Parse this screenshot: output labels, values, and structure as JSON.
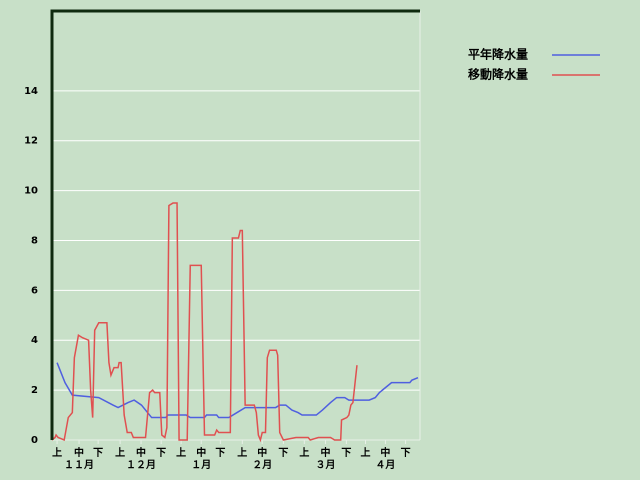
{
  "chart_data": {
    "type": "line",
    "ylim": [
      0,
      17.2
    ],
    "yticks": [
      0,
      2,
      4,
      6,
      8,
      10,
      12,
      14
    ],
    "xlim": [
      0,
      181
    ],
    "xticks": [
      {
        "value": 2.5,
        "label": "上"
      },
      {
        "value": 13.3,
        "label": "中"
      },
      {
        "value": 22.7,
        "label": "下"
      },
      {
        "value": 33.5,
        "label": "上"
      },
      {
        "value": 43.8,
        "label": "中"
      },
      {
        "value": 53.7,
        "label": "下"
      },
      {
        "value": 63.5,
        "label": "上"
      },
      {
        "value": 73.4,
        "label": "中"
      },
      {
        "value": 82.8,
        "label": "下"
      },
      {
        "value": 93.6,
        "label": "上"
      },
      {
        "value": 103.4,
        "label": "中"
      },
      {
        "value": 113.8,
        "label": "下"
      },
      {
        "value": 124.1,
        "label": "上"
      },
      {
        "value": 134.5,
        "label": "中"
      },
      {
        "value": 144.8,
        "label": "下"
      },
      {
        "value": 154.2,
        "label": "上"
      },
      {
        "value": 164,
        "label": "中"
      },
      {
        "value": 173.9,
        "label": "下"
      }
    ],
    "months": [
      {
        "value": 13.3,
        "label": "１１月"
      },
      {
        "value": 43.8,
        "label": "１２月"
      },
      {
        "value": 73.4,
        "label": "１月"
      },
      {
        "value": 103.4,
        "label": "２月"
      },
      {
        "value": 134.5,
        "label": "３月"
      },
      {
        "value": 164,
        "label": "４月"
      }
    ],
    "grid": true,
    "series": [
      {
        "name": "平年降水量",
        "color": "#4f5fe0",
        "x": [
          2.5,
          6.4,
          10,
          23,
          30,
          32.5,
          37.4,
          40.4,
          44,
          47,
          49,
          56,
          57,
          66,
          68,
          75,
          76,
          81,
          82,
          87,
          91,
          95,
          110,
          112,
          115,
          118,
          121,
          123,
          130,
          133,
          137,
          140,
          144,
          146,
          156,
          159,
          161,
          164,
          167,
          176,
          177,
          180
        ],
        "values": [
          3.1,
          2.3,
          1.8,
          1.7,
          1.4,
          1.3,
          1.5,
          1.6,
          1.4,
          1.1,
          0.9,
          0.9,
          1.0,
          1.0,
          0.9,
          0.9,
          1.0,
          1.0,
          0.9,
          0.9,
          1.1,
          1.3,
          1.3,
          1.4,
          1.4,
          1.2,
          1.1,
          1.0,
          1.0,
          1.2,
          1.5,
          1.7,
          1.7,
          1.6,
          1.6,
          1.7,
          1.9,
          2.1,
          2.3,
          2.3,
          2.4,
          2.5
        ]
      },
      {
        "name": "移動降水量",
        "color": "#e05050",
        "x": [
          0,
          1.5,
          2,
          3,
          6,
          8,
          10,
          11,
          13,
          15,
          18,
          19,
          20,
          21,
          23,
          27,
          28,
          29,
          30.5,
          32.5,
          33,
          34,
          35.5,
          37,
          39,
          40,
          46,
          48,
          49.5,
          50.5,
          53,
          54,
          55.5,
          56.5,
          57.5,
          59.5,
          61.5,
          62.5,
          66.5,
          68,
          73.4,
          75,
          80,
          81,
          82,
          87.7,
          88.7,
          91.7,
          92.6,
          93.6,
          95,
          99.5,
          100.5,
          101.5,
          102.5,
          103.4,
          105,
          105.9,
          107,
          110.3,
          111,
          112,
          113.8,
          120,
          126,
          127,
          131,
          137,
          139,
          142,
          142.4,
          145,
          146,
          147,
          148,
          150
        ],
        "values": [
          0,
          0.1,
          0.2,
          0.1,
          0,
          0.9,
          1.1,
          3.3,
          4.2,
          4.1,
          4.0,
          2.0,
          0.9,
          4.4,
          4.7,
          4.7,
          3.1,
          2.6,
          2.9,
          2.9,
          3.1,
          3.1,
          1.0,
          0.3,
          0.3,
          0.1,
          0.1,
          1.9,
          2.0,
          1.9,
          1.9,
          0.2,
          0.1,
          0.5,
          9.4,
          9.5,
          9.5,
          0,
          0,
          7.0,
          7.0,
          0.2,
          0.2,
          0.4,
          0.3,
          0.3,
          8.1,
          8.1,
          8.4,
          8.4,
          1.4,
          1.4,
          1.1,
          0.2,
          0,
          0.3,
          0.3,
          3.3,
          3.6,
          3.6,
          3.4,
          0.3,
          0,
          0.1,
          0.1,
          0,
          0.1,
          0.1,
          0,
          0,
          0.8,
          0.9,
          1.0,
          1.4,
          1.5,
          3.0
        ]
      }
    ]
  }
}
